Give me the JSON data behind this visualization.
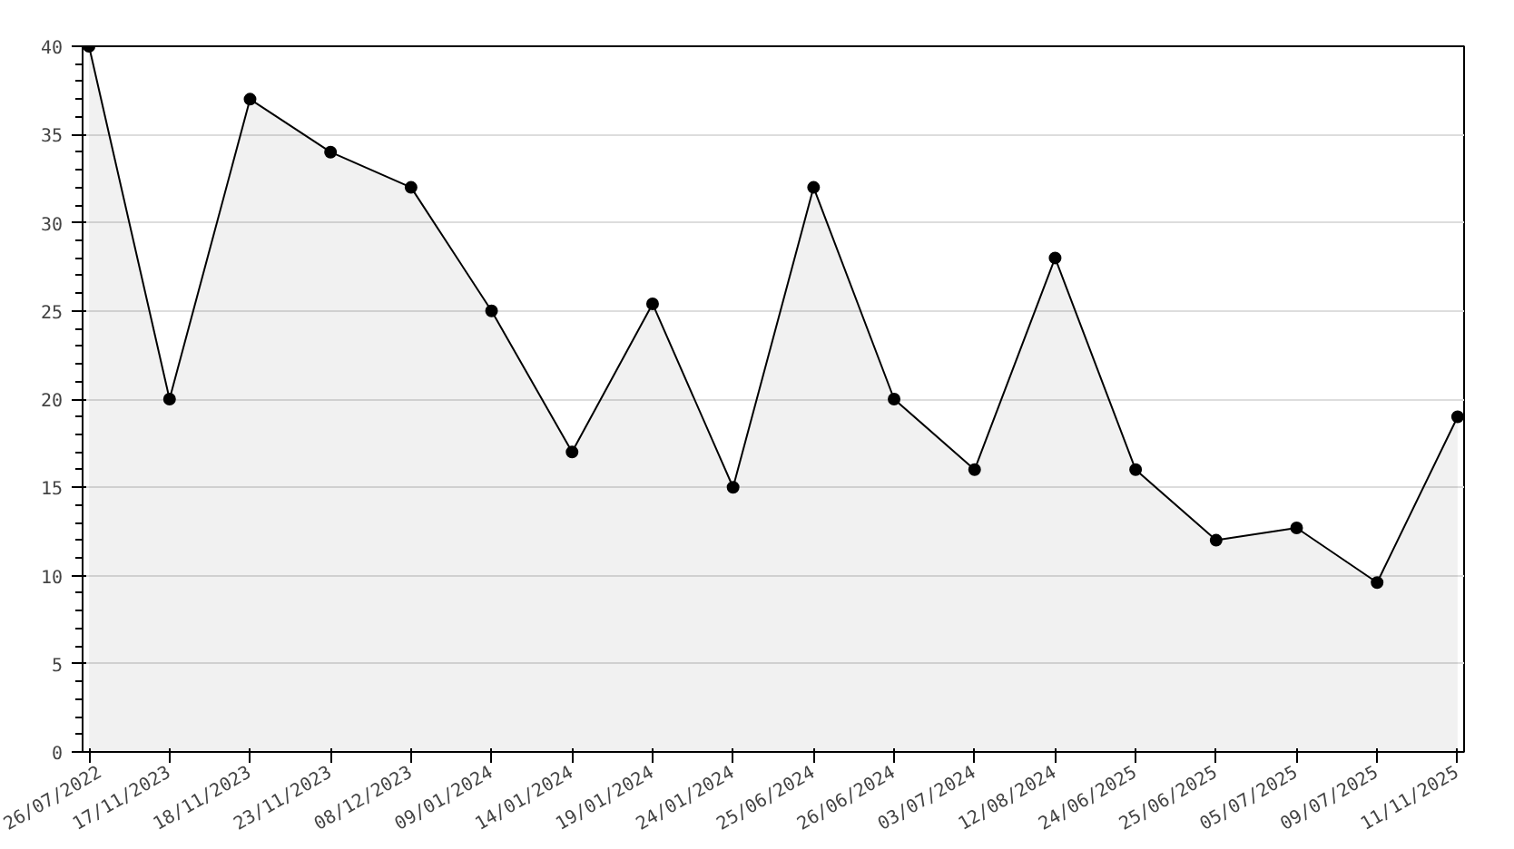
{
  "chart_data": {
    "type": "area",
    "categories": [
      "26/07/2022",
      "17/11/2023",
      "18/11/2023",
      "23/11/2023",
      "08/12/2023",
      "09/01/2024",
      "14/01/2024",
      "19/01/2024",
      "24/01/2024",
      "25/06/2024",
      "26/06/2024",
      "03/07/2024",
      "12/08/2024",
      "24/06/2025",
      "25/06/2025",
      "05/07/2025",
      "09/07/2025",
      "11/11/2025"
    ],
    "series": [
      {
        "color": "#000000",
        "values": [
          40,
          20,
          37,
          34,
          32,
          25,
          17,
          25.4,
          15,
          32,
          20,
          16,
          28,
          16,
          12,
          12.7,
          9.6,
          19
        ]
      }
    ],
    "ylim": [
      0,
      40
    ],
    "yticks": [
      0,
      5,
      10,
      15,
      20,
      25,
      30,
      35,
      40
    ],
    "grid": "y",
    "marker": "circle",
    "line_style": "solid"
  }
}
